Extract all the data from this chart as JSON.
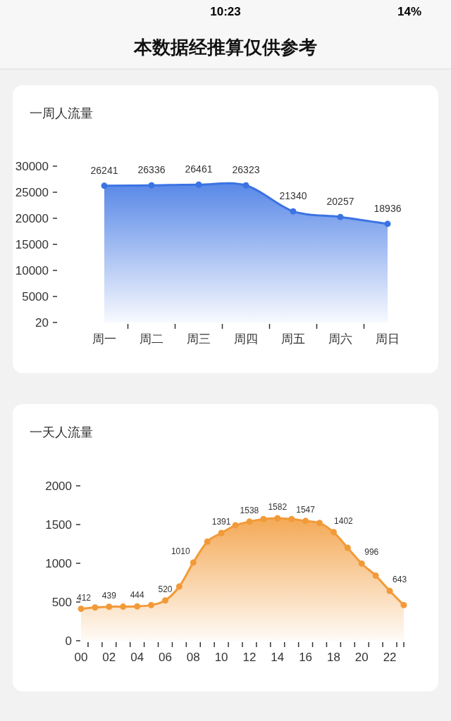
{
  "chart_data": [
    {
      "type": "other",
      "title": "本数据经推算仅供参考",
      "annotations": [
        "10:23",
        "14%"
      ]
    },
    {
      "type": "area",
      "title": "一周人流量",
      "categories": [
        "周一",
        "周二",
        "周三",
        "周四",
        "周五",
        "周六",
        "周日"
      ],
      "color": "#3b73e3",
      "values": [
        26241,
        26336,
        26461,
        26323,
        21340,
        20257,
        18936
      ],
      "ylim": [
        20,
        30000
      ],
      "yticks": [
        20,
        5000,
        10000,
        15000,
        20000,
        25000,
        30000
      ],
      "marker": "circle",
      "data_labels": true
    },
    {
      "type": "area",
      "title": "一天人流量",
      "categories": [
        "00",
        null,
        "02",
        null,
        "04",
        null,
        "06",
        null,
        "08",
        null,
        "10",
        null,
        "12",
        null,
        "14",
        null,
        "16",
        null,
        "18",
        null,
        "20",
        null,
        "22",
        null
      ],
      "color": "#f29a38",
      "values": [
        412,
        430,
        439,
        440,
        444,
        460,
        520,
        700,
        1010,
        1280,
        1391,
        1490,
        1538,
        1570,
        1582,
        1570,
        1547,
        1520,
        1402,
        1200,
        996,
        840,
        643,
        460
      ],
      "value_labels": [
        "412",
        null,
        "439",
        null,
        "444",
        null,
        "520",
        null,
        "1010",
        null,
        "1391",
        null,
        "1538",
        null,
        "1582",
        null,
        "1547",
        null,
        "1402",
        null,
        "996",
        null,
        "643",
        null
      ],
      "ylim": [
        0,
        2000
      ],
      "yticks": [
        0,
        500,
        1000,
        1500,
        2000
      ],
      "marker": "circle"
    }
  ]
}
